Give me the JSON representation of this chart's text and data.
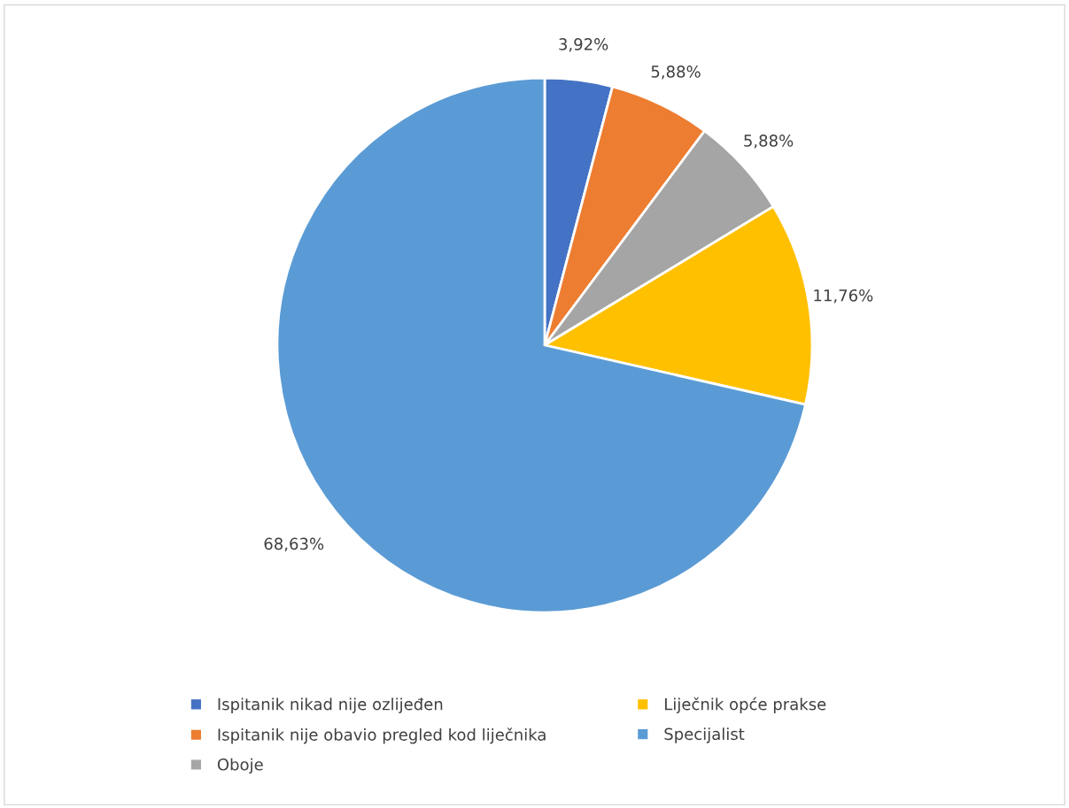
{
  "chart_data": {
    "type": "pie",
    "categories": [
      "Ispitanik nikad nije ozlijeđen",
      "Ispitanik nije obavio pregled kod liječnika",
      "Oboje",
      "Liječnik opće prakse",
      "Specijalist"
    ],
    "values": [
      3.92,
      5.88,
      5.88,
      11.76,
      68.63
    ],
    "value_labels": [
      "3,92%",
      "5,88%",
      "5,88%",
      "11,76%",
      "68,63%"
    ],
    "colors": [
      "#4472c4",
      "#ed7d31",
      "#a5a5a5",
      "#ffc000",
      "#5b9bd5"
    ],
    "legend": "bottom"
  }
}
